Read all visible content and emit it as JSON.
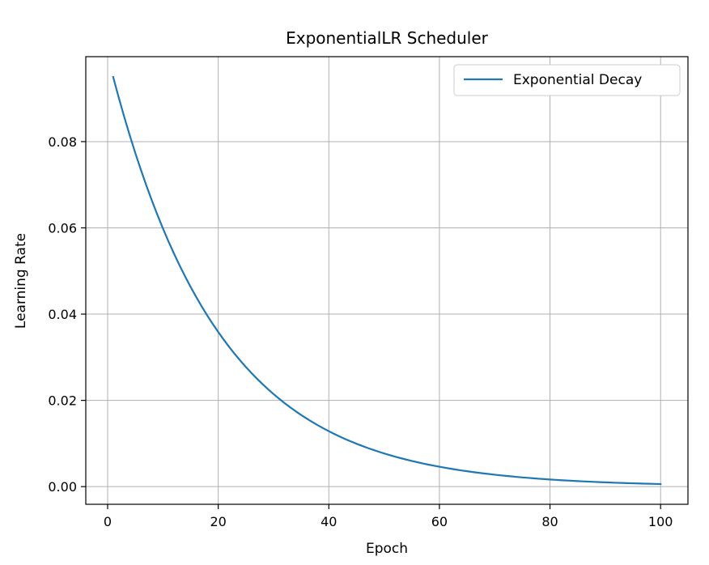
{
  "chart_data": {
    "type": "line",
    "title": "ExponentialLR Scheduler",
    "xlabel": "Epoch",
    "ylabel": "Learning Rate",
    "xlim": [
      -3.95,
      104.95
    ],
    "ylim": [
      -0.0041,
      0.0997
    ],
    "xticks": [
      0,
      20,
      40,
      60,
      80,
      100
    ],
    "xtick_labels": [
      "0",
      "20",
      "40",
      "60",
      "80",
      "100"
    ],
    "yticks": [
      0.0,
      0.02,
      0.04,
      0.06,
      0.08
    ],
    "ytick_labels": [
      "0.00",
      "0.02",
      "0.04",
      "0.06",
      "0.08"
    ],
    "grid": true,
    "legend_position": "top-right",
    "series": [
      {
        "name": "Exponential Decay",
        "color": "#1f77b4",
        "x": [
          1,
          2,
          3,
          4,
          5,
          6,
          7,
          8,
          9,
          10,
          11,
          12,
          13,
          14,
          15,
          16,
          17,
          18,
          19,
          20,
          21,
          22,
          23,
          24,
          25,
          26,
          27,
          28,
          29,
          30,
          31,
          32,
          33,
          34,
          35,
          36,
          37,
          38,
          39,
          40,
          41,
          42,
          43,
          44,
          45,
          46,
          47,
          48,
          49,
          50,
          51,
          52,
          53,
          54,
          55,
          56,
          57,
          58,
          59,
          60,
          61,
          62,
          63,
          64,
          65,
          66,
          67,
          68,
          69,
          70,
          71,
          72,
          73,
          74,
          75,
          76,
          77,
          78,
          79,
          80,
          81,
          82,
          83,
          84,
          85,
          86,
          87,
          88,
          89,
          90,
          91,
          92,
          93,
          94,
          95,
          96,
          97,
          98,
          99,
          100
        ],
        "y": [
          0.095,
          0.09025,
          0.08574,
          0.08145,
          0.07738,
          0.07351,
          0.06983,
          0.06634,
          0.06302,
          0.05987,
          0.05688,
          0.05404,
          0.05133,
          0.04877,
          0.04633,
          0.04401,
          0.04181,
          0.03972,
          0.03774,
          0.03585,
          0.03406,
          0.03235,
          0.03074,
          0.0292,
          0.02774,
          0.02635,
          0.02503,
          0.02378,
          0.02259,
          0.02146,
          0.02039,
          0.01937,
          0.0184,
          0.01748,
          0.01661,
          0.01578,
          0.01499,
          0.01424,
          0.01353,
          0.01285,
          0.01221,
          0.0116,
          0.01102,
          0.01047,
          0.00994,
          0.00945,
          0.00897,
          0.00853,
          0.0081,
          0.00769,
          0.00731,
          0.00694,
          0.0066,
          0.00627,
          0.00595,
          0.00566,
          0.00537,
          0.0051,
          0.00485,
          0.00461,
          0.00438,
          0.00416,
          0.00395,
          0.00375,
          0.00357,
          0.00339,
          0.00322,
          0.00306,
          0.00291,
          0.00276,
          0.00262,
          0.00249,
          0.00237,
          0.00225,
          0.00213,
          0.00203,
          0.00193,
          0.00183,
          0.00174,
          0.00165,
          0.00157,
          0.00149,
          0.00142,
          0.00135,
          0.00128,
          0.00121,
          0.00115,
          0.0011,
          0.00104,
          0.00099,
          0.00094,
          0.00089,
          0.00085,
          0.00081,
          0.00077,
          0.00073,
          0.00069,
          0.00066,
          0.00063,
          0.00059
        ]
      }
    ]
  }
}
